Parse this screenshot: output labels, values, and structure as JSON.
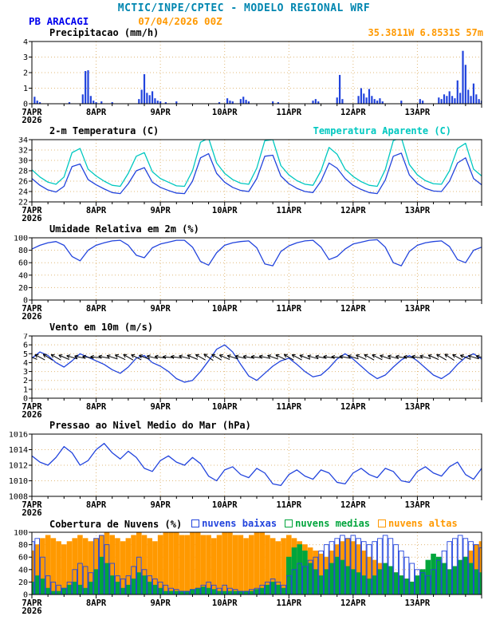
{
  "header": {
    "title": "MCTIC/INPE/CPTEC - MODELO REGIONAL WRF",
    "station": "PB ARACAGI",
    "run": "07/04/2026 00Z",
    "location": "35.3811W 6.8531S 57m"
  },
  "colors": {
    "header": "#0086b0",
    "blue": "#0000ee",
    "orange": "#ff9900",
    "line_blue": "#2244dd",
    "cyan": "#00c8c0",
    "green": "#00a53c",
    "grid": "#e0b878",
    "axis": "#000000"
  },
  "x_axis": {
    "labels": [
      "7APR",
      "8APR",
      "9APR",
      "10APR",
      "11APR",
      "12APR",
      "13APR"
    ],
    "year": "2026",
    "tick_hours": [
      0,
      24,
      48,
      72,
      96,
      120,
      144
    ],
    "xlim": [
      0,
      168
    ]
  },
  "chart_data": [
    {
      "type": "bar",
      "title": "Precipitacao (mm/h)",
      "ylim": [
        0,
        4
      ],
      "yticks": [
        0,
        1,
        2,
        3,
        4
      ],
      "x_step_hours": 1,
      "color": "#2244dd",
      "values": [
        0,
        0.45,
        0.2,
        0.1,
        0,
        0,
        0,
        0,
        0,
        0,
        0,
        0,
        0,
        0,
        0.1,
        0,
        0,
        0,
        0,
        0.6,
        2.1,
        2.15,
        0.5,
        0.2,
        0.1,
        0,
        0.15,
        0,
        0,
        0,
        0.1,
        0,
        0,
        0,
        0,
        0,
        0,
        0,
        0,
        0,
        0.3,
        0.9,
        1.9,
        0.7,
        0.55,
        0.8,
        0.35,
        0.2,
        0.15,
        0,
        0.1,
        0,
        0,
        0,
        0.15,
        0,
        0,
        0,
        0,
        0,
        0,
        0,
        0,
        0,
        0,
        0,
        0,
        0,
        0,
        0,
        0.1,
        0,
        0,
        0.35,
        0.2,
        0.15,
        0,
        0,
        0.3,
        0.45,
        0.25,
        0.15,
        0,
        0,
        0,
        0,
        0,
        0,
        0,
        0,
        0.15,
        0,
        0.1,
        0,
        0,
        0,
        0,
        0,
        0,
        0,
        0,
        0,
        0,
        0,
        0,
        0.2,
        0.3,
        0.15,
        0,
        0,
        0,
        0,
        0,
        0,
        0.4,
        1.85,
        0.3,
        0,
        0,
        0,
        0,
        0,
        0.5,
        1.0,
        0.65,
        0.4,
        0.95,
        0.5,
        0.3,
        0.2,
        0.35,
        0.15,
        0,
        0,
        0,
        0,
        0,
        0,
        0.2,
        0,
        0,
        0,
        0,
        0,
        0,
        0.3,
        0.2,
        0,
        0,
        0,
        0,
        0,
        0.4,
        0.3,
        0.6,
        0.5,
        0.8,
        0.5,
        0.35,
        1.5,
        0.7,
        3.4,
        2.5,
        0.9,
        0.5,
        1.3,
        0.6,
        0.3,
        0.2
      ]
    },
    {
      "type": "line",
      "title": "2-m Temperatura (C)",
      "right_label": "Temperatura Aparente (C)",
      "ylim": [
        22,
        34
      ],
      "yticks": [
        22,
        24,
        26,
        28,
        30,
        32,
        34
      ],
      "x_step_hours": 3,
      "series": [
        {
          "name": "2-m Temperatura (C)",
          "color": "#2244dd",
          "values": [
            26.5,
            25.2,
            24.3,
            23.9,
            25.0,
            28.8,
            29.3,
            26.3,
            25.3,
            24.5,
            23.8,
            23.6,
            25.5,
            28.0,
            28.6,
            25.8,
            24.8,
            24.2,
            23.7,
            23.6,
            26.0,
            30.5,
            31.3,
            27.5,
            25.8,
            24.8,
            24.2,
            24.0,
            26.5,
            30.8,
            31.0,
            27.0,
            25.5,
            24.6,
            24.0,
            23.8,
            26.0,
            29.5,
            28.5,
            26.5,
            25.2,
            24.4,
            23.8,
            23.6,
            26.2,
            30.8,
            31.4,
            27.2,
            25.5,
            24.6,
            24.1,
            24.0,
            26.0,
            29.5,
            30.5,
            26.5,
            25.3
          ]
        },
        {
          "name": "Temperatura Aparente (C)",
          "color": "#00c8c0",
          "values": [
            28.2,
            26.8,
            25.8,
            25.4,
            26.8,
            31.5,
            32.3,
            28.3,
            27.0,
            26.0,
            25.2,
            25.0,
            27.5,
            30.8,
            31.5,
            27.8,
            26.5,
            25.8,
            25.1,
            25.0,
            28.0,
            33.5,
            34.3,
            29.5,
            27.5,
            26.3,
            25.6,
            25.4,
            28.5,
            33.8,
            34.0,
            29.0,
            27.2,
            26.1,
            25.4,
            25.2,
            28.0,
            32.5,
            31.2,
            28.3,
            26.9,
            25.9,
            25.2,
            25.0,
            28.2,
            33.8,
            34.4,
            29.2,
            27.2,
            26.1,
            25.5,
            25.4,
            28.0,
            32.3,
            33.3,
            28.3,
            27.0
          ]
        }
      ]
    },
    {
      "type": "line",
      "title": "Umidade Relativa em 2m (%)",
      "ylim": [
        0,
        100
      ],
      "yticks": [
        0,
        20,
        40,
        60,
        80,
        100
      ],
      "x_step_hours": 3,
      "series": [
        {
          "name": "Umidade Relativa",
          "color": "#2244dd",
          "values": [
            82,
            88,
            92,
            94,
            88,
            70,
            63,
            80,
            88,
            92,
            95,
            96,
            88,
            72,
            68,
            84,
            90,
            93,
            96,
            96,
            85,
            62,
            56,
            76,
            88,
            92,
            94,
            95,
            84,
            58,
            55,
            78,
            87,
            92,
            95,
            96,
            85,
            65,
            70,
            82,
            90,
            93,
            96,
            97,
            85,
            60,
            55,
            78,
            88,
            92,
            94,
            95,
            86,
            65,
            60,
            80,
            85
          ]
        }
      ]
    },
    {
      "type": "line",
      "title": "Vento em 10m (m/s)",
      "ylim": [
        0,
        7
      ],
      "yticks": [
        0,
        1,
        2,
        3,
        4,
        5,
        6,
        7
      ],
      "x_step_hours": 3,
      "series": [
        {
          "name": "Vento 10m",
          "color": "#2244dd",
          "values": [
            4.5,
            5.2,
            4.8,
            4.0,
            3.5,
            4.2,
            5.0,
            4.6,
            4.2,
            3.8,
            3.2,
            2.8,
            3.5,
            4.5,
            4.8,
            4.0,
            3.6,
            3.0,
            2.2,
            1.8,
            2.0,
            3.0,
            4.2,
            5.5,
            6.0,
            5.2,
            3.8,
            2.5,
            2.0,
            2.8,
            3.6,
            4.2,
            4.5,
            3.8,
            3.0,
            2.4,
            2.6,
            3.4,
            4.4,
            5.0,
            4.4,
            3.6,
            2.8,
            2.2,
            2.6,
            3.5,
            4.3,
            4.8,
            4.2,
            3.4,
            2.6,
            2.2,
            2.8,
            3.8,
            4.6,
            5.0,
            4.4
          ]
        }
      ],
      "barbs": {
        "y": 4.6,
        "step_hours": 3,
        "color": "#000000",
        "dirs": [
          112,
          118,
          122,
          119,
          113,
          107,
          102,
          99,
          96,
          101,
          108,
          115,
          120,
          117,
          110,
          104,
          99,
          95,
          98,
          105,
          112,
          119,
          124,
          120,
          114,
          108,
          103,
          100,
          97,
          102,
          109,
          116,
          121,
          118,
          111,
          106,
          101,
          98,
          95,
          100,
          107,
          114,
          119,
          116,
          109,
          104,
          100,
          97,
          99,
          106,
          113,
          120,
          123,
          118,
          112,
          107,
          103
        ]
      }
    },
    {
      "type": "line",
      "title": "Pressao ao Nivel Medio do Mar (hPa)",
      "ylim": [
        1008,
        1016
      ],
      "yticks": [
        1008,
        1010,
        1012,
        1014,
        1016
      ],
      "x_step_hours": 3,
      "series": [
        {
          "name": "Pressao nivel do mar",
          "color": "#2244dd",
          "values": [
            1013.2,
            1012.4,
            1012.0,
            1013.0,
            1014.4,
            1013.6,
            1012.0,
            1012.6,
            1014.0,
            1014.8,
            1013.6,
            1012.8,
            1013.8,
            1013.0,
            1011.6,
            1011.2,
            1012.6,
            1013.2,
            1012.4,
            1012.0,
            1013.0,
            1012.2,
            1010.6,
            1010.0,
            1011.4,
            1011.8,
            1010.8,
            1010.4,
            1011.6,
            1011.0,
            1009.6,
            1009.4,
            1010.8,
            1011.4,
            1010.6,
            1010.2,
            1011.4,
            1011.0,
            1009.8,
            1009.6,
            1011.0,
            1011.6,
            1010.8,
            1010.4,
            1011.6,
            1011.2,
            1010.0,
            1009.8,
            1011.2,
            1011.8,
            1011.0,
            1010.6,
            1011.8,
            1012.4,
            1010.8,
            1010.2,
            1011.6
          ]
        }
      ]
    },
    {
      "type": "bars-multi",
      "title": "Cobertura de Nuvens (%)",
      "ylim": [
        0,
        100
      ],
      "yticks": [
        0,
        20,
        40,
        60,
        80,
        100
      ],
      "x_step_hours": 2,
      "legend": [
        {
          "label": "nuvens baixas",
          "color": "#2244dd"
        },
        {
          "label": "nuvens medias",
          "color": "#00a53c"
        },
        {
          "label": "nuvens altas",
          "color": "#ff9900"
        }
      ],
      "series": [
        {
          "name": "nuvens altas",
          "color": "#ff9900",
          "fill": true,
          "values": [
            70,
            80,
            90,
            95,
            90,
            85,
            80,
            85,
            90,
            95,
            90,
            85,
            90,
            95,
            100,
            95,
            90,
            85,
            90,
            95,
            100,
            95,
            90,
            85,
            95,
            100,
            100,
            100,
            95,
            95,
            100,
            100,
            95,
            95,
            90,
            95,
            100,
            100,
            95,
            95,
            90,
            95,
            100,
            100,
            95,
            90,
            85,
            90,
            95,
            90,
            85,
            80,
            75,
            70,
            65,
            60,
            70,
            80,
            85,
            90,
            85,
            80,
            70,
            60,
            55,
            50,
            45,
            40,
            35,
            30,
            25,
            20,
            20,
            25,
            30,
            35,
            30,
            25,
            30,
            40,
            50,
            60,
            70,
            80,
            85
          ]
        },
        {
          "name": "nuvens medias",
          "color": "#00a53c",
          "fill": true,
          "values": [
            20,
            30,
            25,
            10,
            5,
            5,
            10,
            15,
            20,
            15,
            10,
            20,
            40,
            60,
            50,
            30,
            20,
            10,
            15,
            25,
            35,
            30,
            20,
            15,
            10,
            5,
            5,
            5,
            5,
            5,
            8,
            10,
            12,
            10,
            8,
            5,
            5,
            5,
            5,
            5,
            5,
            5,
            8,
            10,
            15,
            20,
            15,
            10,
            60,
            75,
            80,
            70,
            50,
            40,
            30,
            40,
            50,
            60,
            55,
            45,
            40,
            35,
            30,
            25,
            30,
            40,
            50,
            45,
            35,
            30,
            25,
            20,
            30,
            40,
            55,
            65,
            60,
            50,
            40,
            45,
            55,
            60,
            50,
            40,
            35
          ]
        },
        {
          "name": "nuvens baixas",
          "color": "#2244dd",
          "fill": false,
          "values": [
            85,
            90,
            60,
            30,
            20,
            15,
            10,
            20,
            40,
            50,
            45,
            35,
            90,
            95,
            80,
            50,
            30,
            25,
            30,
            45,
            60,
            40,
            30,
            25,
            20,
            15,
            10,
            8,
            5,
            5,
            8,
            10,
            15,
            20,
            15,
            10,
            15,
            10,
            8,
            5,
            5,
            8,
            10,
            15,
            20,
            25,
            20,
            15,
            30,
            40,
            50,
            45,
            55,
            60,
            70,
            80,
            85,
            90,
            95,
            90,
            95,
            90,
            85,
            80,
            85,
            90,
            95,
            90,
            80,
            70,
            60,
            50,
            40,
            35,
            30,
            40,
            55,
            70,
            85,
            90,
            95,
            90,
            85,
            80,
            75
          ]
        }
      ]
    }
  ]
}
